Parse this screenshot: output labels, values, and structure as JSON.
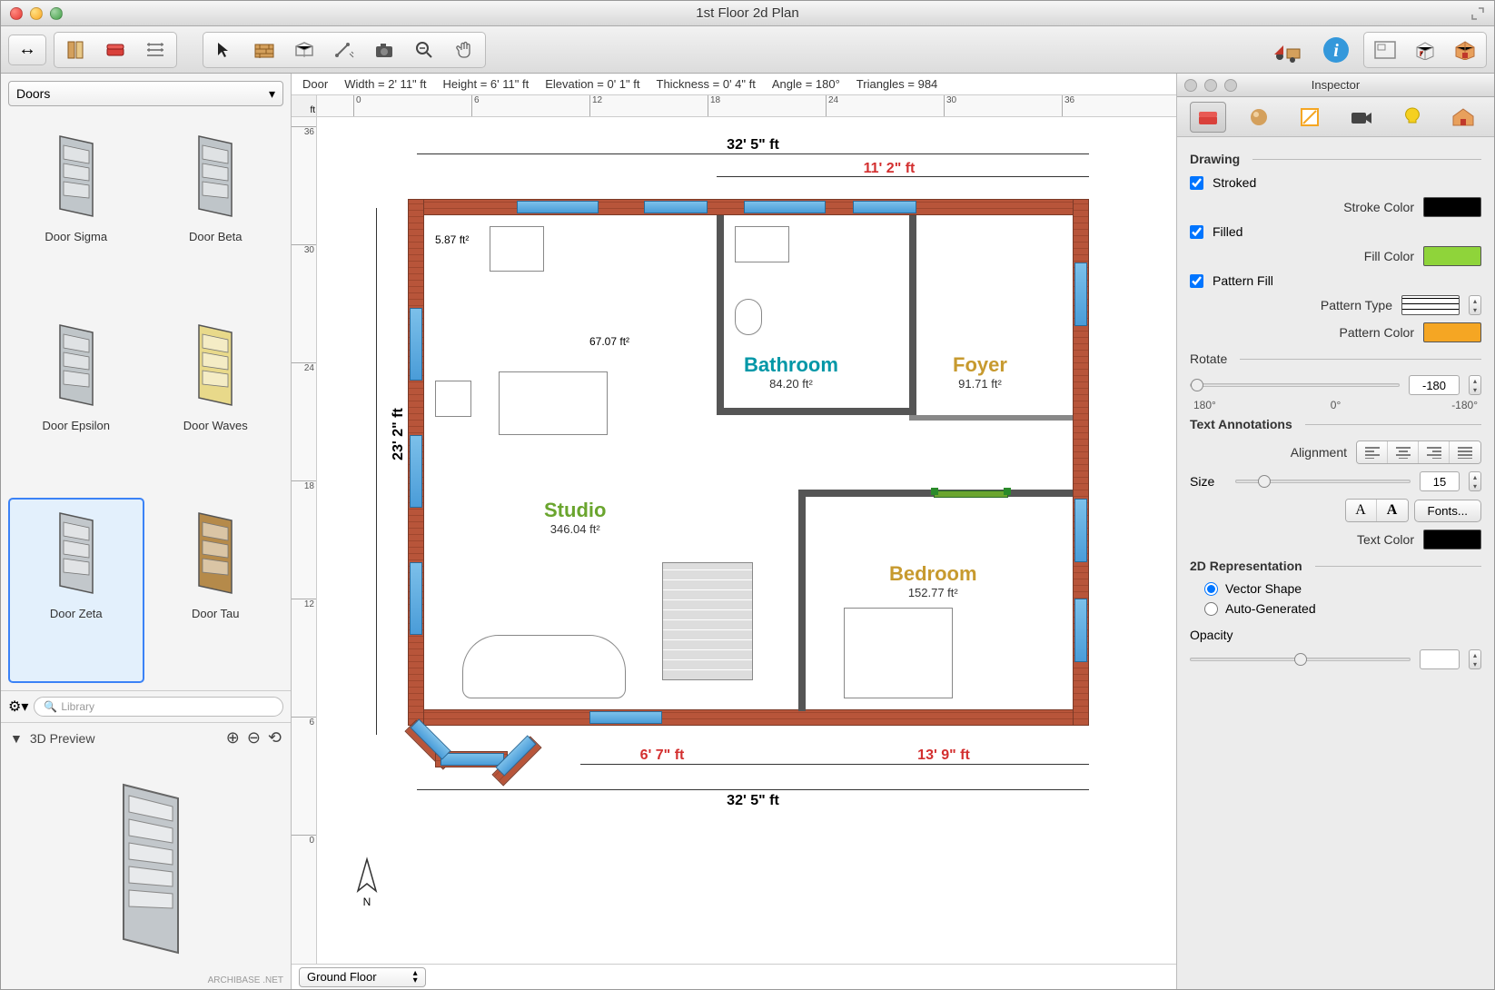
{
  "window": {
    "title": "1st Floor 2d Plan"
  },
  "statusbar": {
    "object": "Door",
    "width_label": "Width = 2' 11\" ft",
    "height_label": "Height = 6' 11\" ft",
    "elevation_label": "Elevation = 0' 1\" ft",
    "thickness_label": "Thickness = 0' 4\" ft",
    "angle_label": "Angle = 180°",
    "triangles_label": "Triangles = 984"
  },
  "ruler": {
    "unit_corner": "ft",
    "h_ticks": [
      0,
      6,
      12,
      18,
      24,
      30,
      36
    ],
    "v_ticks": [
      36,
      30,
      24,
      18,
      12,
      6,
      0
    ]
  },
  "library": {
    "category": "Doors",
    "search_placeholder": "Library",
    "items": [
      {
        "label": "Door Sigma",
        "selected": false,
        "fill": "#c0c6ca"
      },
      {
        "label": "Door Beta",
        "selected": false,
        "fill": "#bfc5c9"
      },
      {
        "label": "Door Epsilon",
        "selected": false,
        "fill": "#bfc5c8"
      },
      {
        "label": "Door Waves",
        "selected": false,
        "fill": "#e8d98a"
      },
      {
        "label": "Door Zeta",
        "selected": true,
        "fill": "#c2c7cb"
      },
      {
        "label": "Door Tau",
        "selected": false,
        "fill": "#b58a4a"
      }
    ],
    "preview_label": "3D Preview",
    "watermark": "ARCHIBASE .NET"
  },
  "floorplan": {
    "floor_selector": "Ground Floor",
    "overall_width": "32' 5\" ft",
    "overall_height": "23' 2\" ft",
    "dim_top_right": "11' 2\" ft",
    "dim_bottom_left": "6' 7\" ft",
    "dim_bottom_right": "13' 9\" ft",
    "rooms": {
      "studio": {
        "label": "Studio",
        "area": "346.04 ft²",
        "color": "#6aa52e"
      },
      "bathroom": {
        "label": "Bathroom",
        "area": "84.20 ft²",
        "color": "#0097a7"
      },
      "foyer": {
        "label": "Foyer",
        "area": "91.71 ft²",
        "color": "#c79a2f"
      },
      "bedroom": {
        "label": "Bedroom",
        "area": "152.77 ft²",
        "color": "#c79a2f"
      },
      "closet1_area": "5.87 ft²",
      "kitchen_area": "67.07 ft²"
    },
    "wall_brick_color": "#b8553a",
    "window_color": "#5aa8d8"
  },
  "inspector": {
    "title": "Inspector",
    "drawing": {
      "heading": "Drawing",
      "stroked": {
        "label": "Stroked",
        "checked": true
      },
      "stroke_color": {
        "label": "Stroke Color",
        "value": "#000000"
      },
      "filled": {
        "label": "Filled",
        "checked": true
      },
      "fill_color": {
        "label": "Fill Color",
        "value": "#8fd43a"
      },
      "pattern_fill": {
        "label": "Pattern Fill",
        "checked": true
      },
      "pattern_type_label": "Pattern Type",
      "pattern_color": {
        "label": "Pattern Color",
        "value": "#f5a623"
      },
      "rotate": {
        "label": "Rotate",
        "value": "-180",
        "min_label": "180°",
        "mid_label": "0°",
        "max_label": "-180°"
      }
    },
    "text": {
      "heading": "Text Annotations",
      "alignment_label": "Alignment",
      "size_label": "Size",
      "size_value": "15",
      "fonts_button": "Fonts...",
      "text_color": {
        "label": "Text Color",
        "value": "#000000"
      }
    },
    "rep2d": {
      "heading": "2D Representation",
      "vector_label": "Vector Shape",
      "auto_label": "Auto-Generated",
      "selected": "vector",
      "opacity_label": "Opacity",
      "opacity_value": ""
    }
  }
}
